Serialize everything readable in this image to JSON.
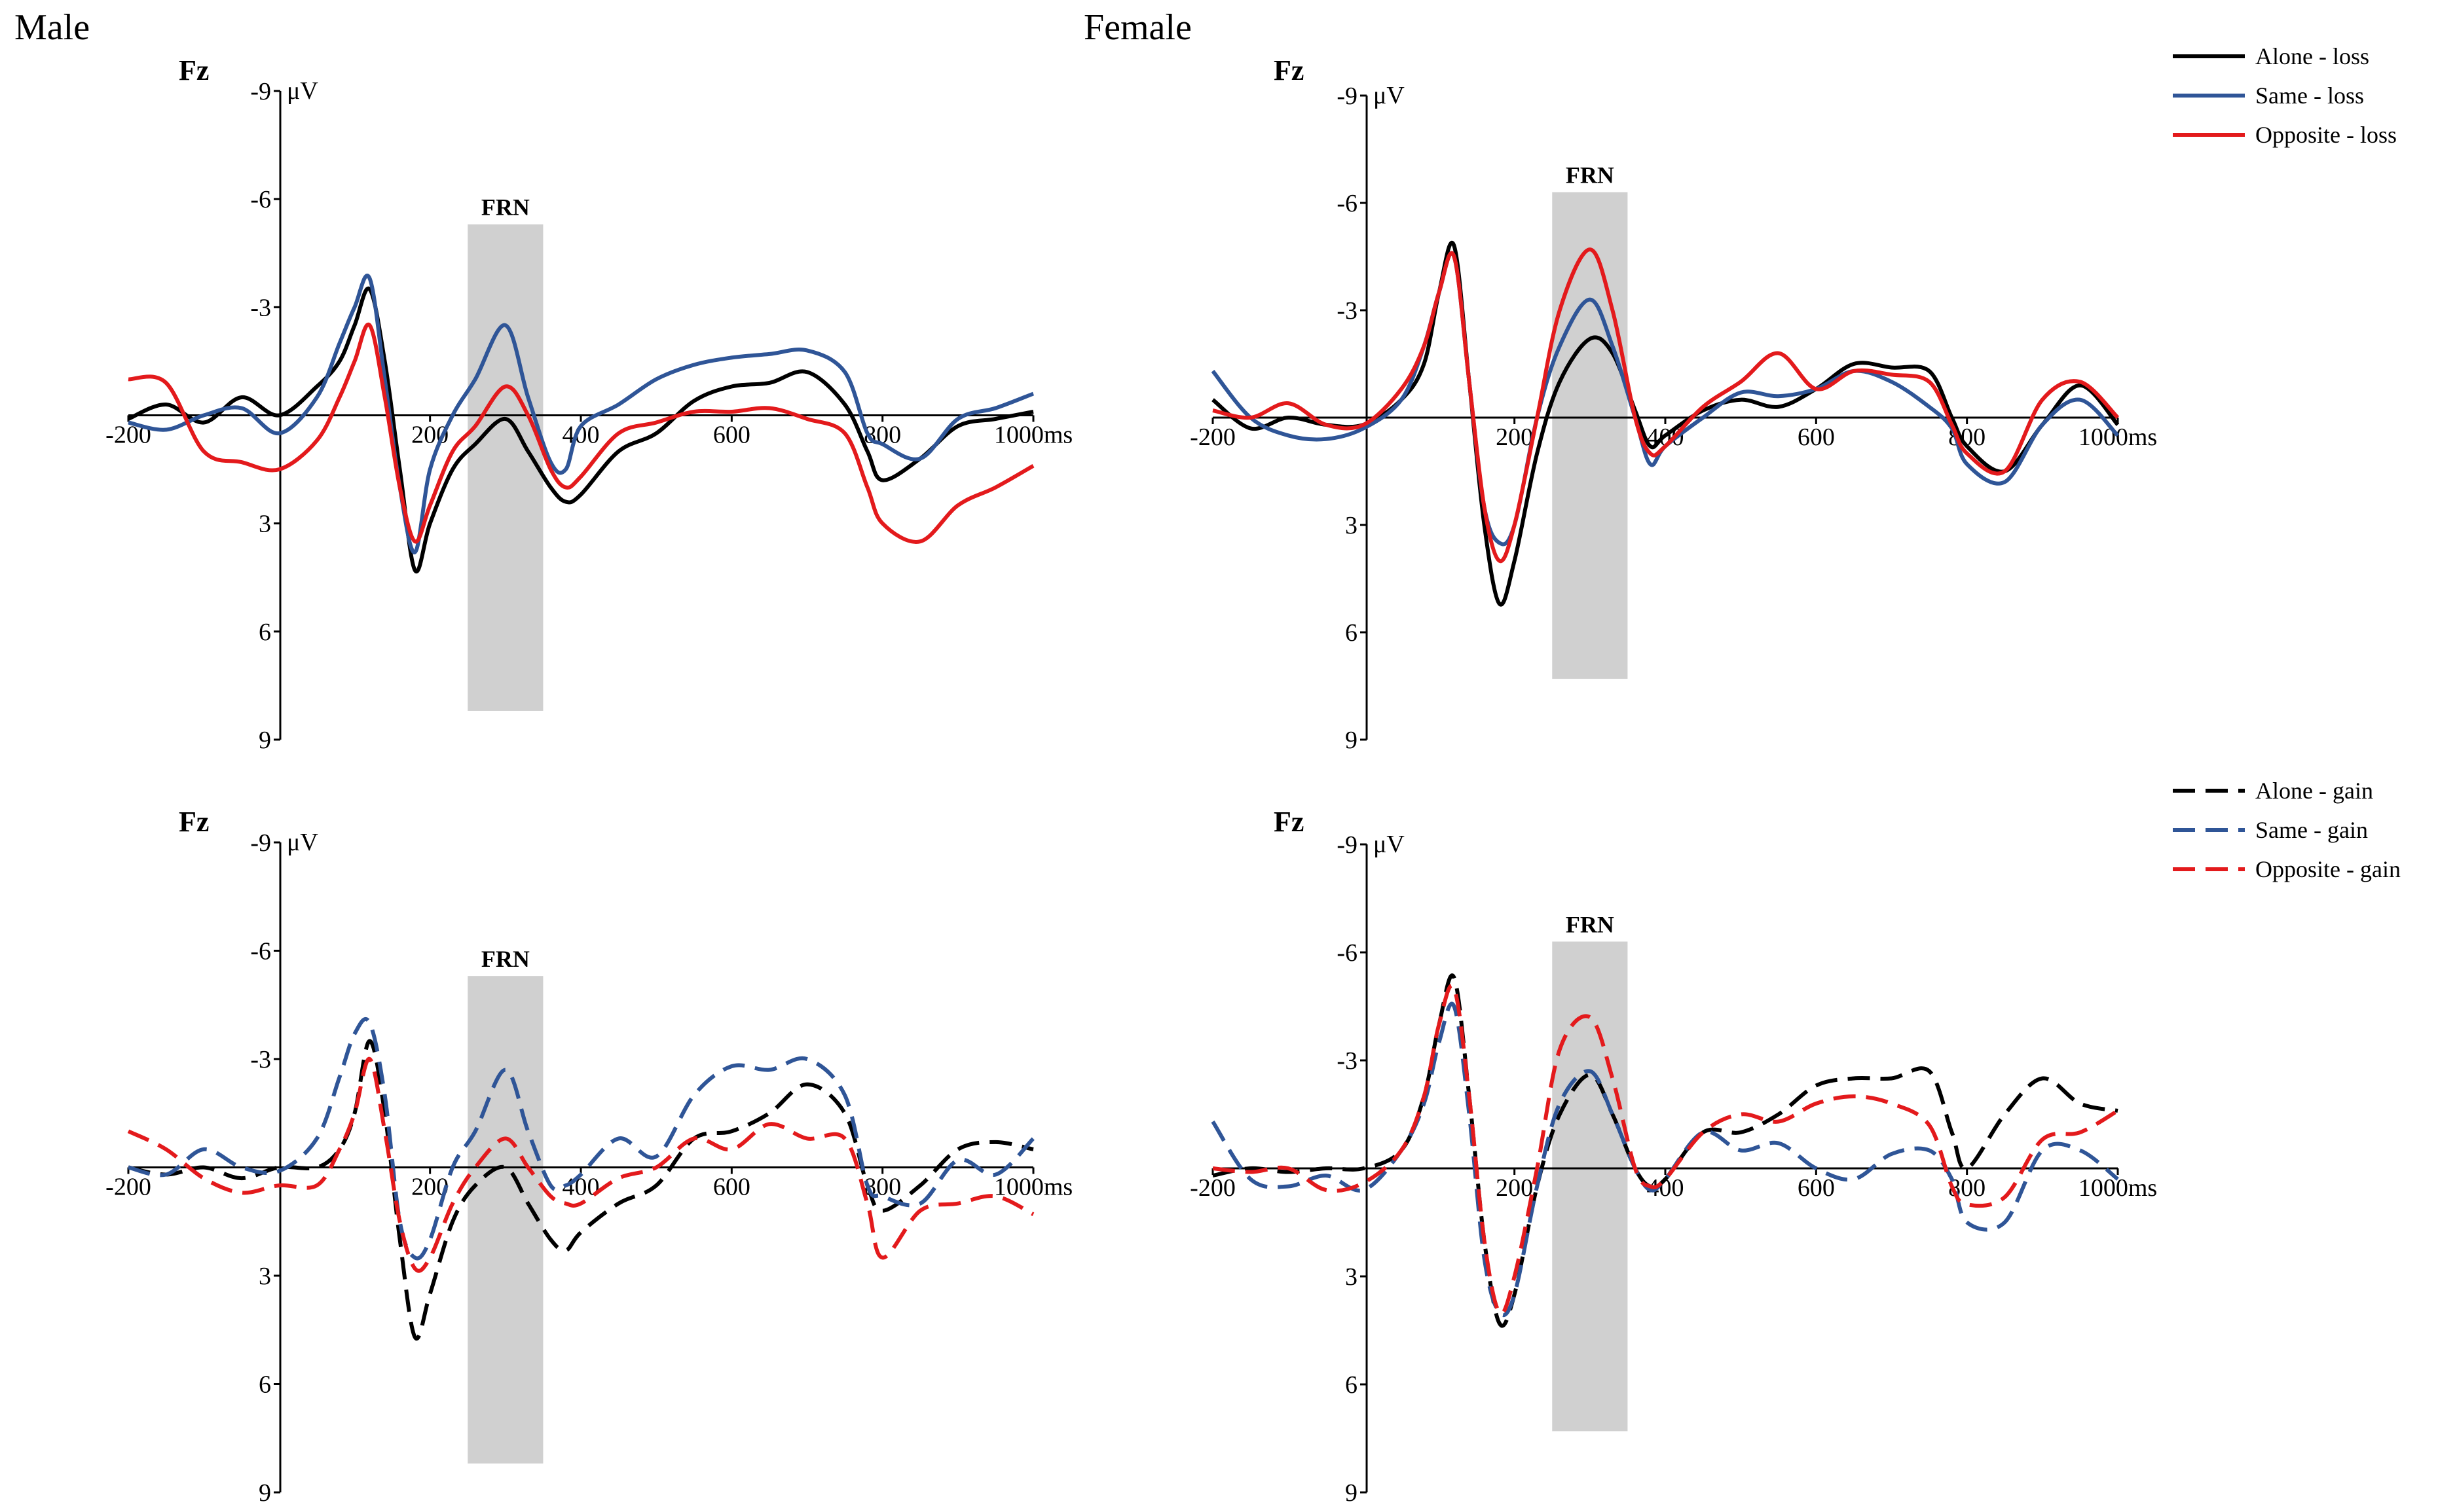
{
  "headings": {
    "left": "Male",
    "right": "Female"
  },
  "legends": [
    {
      "items": [
        {
          "label": "Alone - loss",
          "color": "#000000",
          "dashed": false
        },
        {
          "label": "Same - loss",
          "color": "#2f5597",
          "dashed": false
        },
        {
          "label": "Opposite - loss",
          "color": "#e31a1c",
          "dashed": false
        }
      ]
    },
    {
      "items": [
        {
          "label": "Alone - gain",
          "color": "#000000",
          "dashed": true
        },
        {
          "label": "Same - gain",
          "color": "#2f5597",
          "dashed": true
        },
        {
          "label": "Opposite - gain",
          "color": "#e31a1c",
          "dashed": true
        }
      ]
    }
  ],
  "chart_data": [
    {
      "type": "line",
      "panel": "Male, loss",
      "electrode": "Fz",
      "ylabel": "μV",
      "xlabel": "ms",
      "x_ticks": [
        "-200",
        "200",
        "400",
        "600",
        "800",
        "1000ms"
      ],
      "y_ticks": [
        "-9",
        "-6",
        "-3",
        "3",
        "6",
        "9"
      ],
      "xlim": [
        -200,
        1000
      ],
      "ylim": [
        -9,
        9
      ],
      "y_inverted": true,
      "annotation": {
        "label": "FRN",
        "x_range": [
          250,
          350
        ],
        "y_range": [
          -5.3,
          8.2
        ]
      },
      "x": [
        -200,
        -150,
        -100,
        -50,
        0,
        50,
        80,
        100,
        120,
        140,
        160,
        180,
        200,
        230,
        260,
        300,
        330,
        360,
        380,
        400,
        450,
        500,
        550,
        600,
        650,
        700,
        750,
        780,
        800,
        850,
        900,
        950,
        1000
      ],
      "series": [
        {
          "name": "Alone - loss",
          "color": "#000000",
          "dashed": false,
          "values": [
            0.1,
            -0.3,
            0.2,
            -0.5,
            0.0,
            -0.8,
            -1.5,
            -2.5,
            -3.5,
            -1.5,
            1.5,
            4.3,
            3.0,
            1.5,
            0.8,
            0.1,
            1.0,
            2.0,
            2.4,
            2.2,
            1.0,
            0.5,
            -0.4,
            -0.8,
            -0.9,
            -1.2,
            -0.3,
            1.0,
            1.8,
            1.2,
            0.3,
            0.1,
            -0.1
          ]
        },
        {
          "name": "Same - loss",
          "color": "#2f5597",
          "dashed": false,
          "values": [
            0.2,
            0.4,
            0.0,
            -0.2,
            0.5,
            -0.5,
            -2.0,
            -3.0,
            -3.8,
            -1.0,
            2.0,
            3.8,
            1.5,
            0.0,
            -1.0,
            -2.5,
            -0.5,
            1.3,
            1.5,
            0.3,
            -0.3,
            -1.0,
            -1.4,
            -1.6,
            -1.7,
            -1.8,
            -1.2,
            0.5,
            0.8,
            1.2,
            0.1,
            -0.2,
            -0.6
          ]
        },
        {
          "name": "Opposite - loss",
          "color": "#e31a1c",
          "dashed": false,
          "values": [
            -1.0,
            -0.9,
            1.0,
            1.3,
            1.5,
            0.7,
            -0.5,
            -1.5,
            -2.5,
            -0.5,
            2.0,
            3.5,
            2.5,
            1.0,
            0.3,
            -0.8,
            0.0,
            1.5,
            2.0,
            1.7,
            0.5,
            0.2,
            -0.1,
            -0.1,
            -0.2,
            0.1,
            0.5,
            2.0,
            3.0,
            3.5,
            2.5,
            2.0,
            1.4
          ]
        }
      ]
    },
    {
      "type": "line",
      "panel": "Female, loss",
      "electrode": "Fz",
      "ylabel": "μV",
      "xlabel": "ms",
      "x_ticks": [
        "-200",
        "200",
        "400",
        "600",
        "800",
        "1000ms"
      ],
      "y_ticks": [
        "-9",
        "-6",
        "-3",
        "3",
        "6",
        "9"
      ],
      "xlim": [
        -200,
        1000
      ],
      "ylim": [
        -9,
        9
      ],
      "y_inverted": true,
      "annotation": {
        "label": "FRN",
        "x_range": [
          250,
          350
        ],
        "y_range": [
          -6.3,
          7.3
        ]
      },
      "x": [
        -200,
        -150,
        -100,
        -50,
        0,
        50,
        80,
        100,
        120,
        140,
        160,
        180,
        200,
        230,
        260,
        300,
        330,
        360,
        380,
        400,
        450,
        500,
        550,
        600,
        650,
        700,
        750,
        780,
        800,
        850,
        900,
        950,
        1000
      ],
      "series": [
        {
          "name": "Alone - loss",
          "color": "#000000",
          "dashed": false,
          "values": [
            -0.5,
            0.3,
            0.0,
            0.2,
            0.2,
            -0.5,
            -1.5,
            -3.5,
            -4.8,
            -1.0,
            3.0,
            5.2,
            4.0,
            1.0,
            -1.0,
            -2.2,
            -1.8,
            -0.2,
            0.8,
            0.5,
            -0.2,
            -0.5,
            -0.3,
            -0.8,
            -1.5,
            -1.4,
            -1.3,
            0.0,
            0.8,
            1.5,
            0.2,
            -0.9,
            0.2
          ]
        },
        {
          "name": "Same - loss",
          "color": "#2f5597",
          "dashed": false,
          "values": [
            -1.3,
            0.0,
            0.5,
            0.6,
            0.3,
            -0.5,
            -2.0,
            -3.5,
            -4.5,
            -1.0,
            2.5,
            3.5,
            3.0,
            0.0,
            -2.0,
            -3.3,
            -2.0,
            0.0,
            1.3,
            0.8,
            0.0,
            -0.7,
            -0.6,
            -0.8,
            -1.3,
            -1.0,
            -0.3,
            0.3,
            1.3,
            1.8,
            0.2,
            -0.5,
            0.5
          ]
        },
        {
          "name": "Opposite - loss",
          "color": "#e31a1c",
          "dashed": false,
          "values": [
            -0.2,
            0.0,
            -0.4,
            0.2,
            0.2,
            -0.8,
            -2.0,
            -3.5,
            -4.5,
            -1.0,
            2.5,
            4.0,
            3.0,
            0.0,
            -3.0,
            -4.7,
            -3.0,
            0.0,
            1.0,
            0.8,
            -0.3,
            -1.0,
            -1.8,
            -0.8,
            -1.3,
            -1.2,
            -1.0,
            0.2,
            1.0,
            1.5,
            -0.5,
            -1.0,
            0.0
          ]
        }
      ]
    },
    {
      "type": "line",
      "panel": "Male, gain",
      "electrode": "Fz",
      "ylabel": "μV",
      "xlabel": "ms",
      "x_ticks": [
        "-200",
        "200",
        "400",
        "600",
        "800",
        "1000ms"
      ],
      "y_ticks": [
        "-9",
        "-6",
        "-3",
        "3",
        "6",
        "9"
      ],
      "xlim": [
        -200,
        1000
      ],
      "ylim": [
        -9,
        9
      ],
      "y_inverted": true,
      "annotation": {
        "label": "FRN",
        "x_range": [
          250,
          350
        ],
        "y_range": [
          -5.3,
          8.2
        ]
      },
      "x": [
        -200,
        -150,
        -100,
        -50,
        0,
        50,
        80,
        100,
        120,
        140,
        160,
        180,
        200,
        230,
        260,
        300,
        330,
        360,
        380,
        400,
        450,
        500,
        550,
        600,
        650,
        700,
        750,
        780,
        800,
        850,
        900,
        950,
        1000
      ],
      "series": [
        {
          "name": "Alone - gain",
          "color": "#000000",
          "dashed": true,
          "values": [
            0.0,
            0.2,
            0.0,
            0.3,
            0.0,
            0.0,
            -0.5,
            -1.5,
            -3.5,
            -1.5,
            2.0,
            4.7,
            3.5,
            1.5,
            0.5,
            0.0,
            1.0,
            2.0,
            2.3,
            1.8,
            1.0,
            0.5,
            -0.8,
            -1.0,
            -1.5,
            -2.3,
            -1.5,
            0.5,
            1.2,
            0.5,
            -0.5,
            -0.7,
            -0.5
          ]
        },
        {
          "name": "Same - gain",
          "color": "#2f5597",
          "dashed": true,
          "values": [
            0.0,
            0.2,
            -0.5,
            0.0,
            0.1,
            -0.8,
            -2.5,
            -3.7,
            -4.0,
            -2.0,
            1.5,
            2.5,
            2.0,
            0.0,
            -1.0,
            -2.7,
            -1.0,
            0.5,
            0.5,
            0.2,
            -0.8,
            -0.3,
            -2.0,
            -2.8,
            -2.7,
            -3.0,
            -2.0,
            0.5,
            0.8,
            1.0,
            -0.2,
            0.2,
            -0.8
          ]
        },
        {
          "name": "Opposite - gain",
          "color": "#e31a1c",
          "dashed": true,
          "values": [
            -1.0,
            -0.5,
            0.3,
            0.7,
            0.5,
            0.5,
            -0.5,
            -1.5,
            -3.0,
            -1.0,
            1.5,
            2.8,
            2.5,
            1.0,
            0.0,
            -0.8,
            0.0,
            0.8,
            1.0,
            1.0,
            0.3,
            0.0,
            -0.8,
            -0.5,
            -1.2,
            -0.8,
            -0.8,
            1.0,
            2.5,
            1.2,
            1.0,
            0.8,
            1.3
          ]
        }
      ]
    },
    {
      "type": "line",
      "panel": "Female, gain",
      "electrode": "Fz",
      "ylabel": "μV",
      "xlabel": "ms",
      "x_ticks": [
        "-200",
        "200",
        "400",
        "600",
        "800",
        "1000ms"
      ],
      "y_ticks": [
        "-9",
        "-6",
        "-3",
        "3",
        "6",
        "9"
      ],
      "xlim": [
        -200,
        1000
      ],
      "ylim": [
        -9,
        9
      ],
      "y_inverted": true,
      "annotation": {
        "label": "FRN",
        "x_range": [
          250,
          350
        ],
        "y_range": [
          -6.3,
          7.3
        ]
      },
      "x": [
        -200,
        -150,
        -100,
        -50,
        0,
        50,
        80,
        100,
        120,
        140,
        160,
        180,
        200,
        230,
        260,
        300,
        330,
        360,
        380,
        400,
        450,
        500,
        550,
        600,
        650,
        700,
        750,
        780,
        800,
        850,
        900,
        950,
        1000
      ],
      "series": [
        {
          "name": "Alone - gain",
          "color": "#000000",
          "dashed": true,
          "values": [
            0.2,
            0.0,
            0.1,
            0.0,
            0.0,
            -0.5,
            -2.0,
            -4.0,
            -5.3,
            -2.0,
            2.0,
            4.3,
            3.5,
            0.5,
            -1.5,
            -2.6,
            -1.5,
            0.0,
            0.5,
            0.3,
            -1.0,
            -1.0,
            -1.5,
            -2.3,
            -2.5,
            -2.5,
            -2.7,
            -1.0,
            0.0,
            -1.5,
            -2.5,
            -1.8,
            -1.6
          ]
        },
        {
          "name": "Same - gain",
          "color": "#2f5597",
          "dashed": true,
          "values": [
            -1.3,
            0.3,
            0.5,
            0.2,
            0.6,
            -0.5,
            -1.8,
            -3.5,
            -4.5,
            -1.5,
            2.5,
            4.0,
            3.5,
            0.5,
            -1.8,
            -2.7,
            -1.5,
            0.0,
            0.6,
            0.3,
            -1.0,
            -0.5,
            -0.7,
            0.0,
            0.3,
            -0.4,
            -0.5,
            0.3,
            1.5,
            1.5,
            -0.5,
            -0.5,
            0.3
          ]
        },
        {
          "name": "Opposite - gain",
          "color": "#e31a1c",
          "dashed": true,
          "values": [
            0.0,
            0.1,
            0.0,
            0.6,
            0.4,
            -0.5,
            -2.0,
            -4.0,
            -5.0,
            -2.0,
            2.0,
            4.0,
            3.0,
            0.0,
            -3.3,
            -4.2,
            -2.5,
            0.0,
            0.5,
            0.3,
            -1.0,
            -1.5,
            -1.3,
            -1.8,
            -2.0,
            -1.8,
            -1.2,
            0.5,
            1.0,
            0.8,
            -0.8,
            -1.0,
            -1.6
          ]
        }
      ]
    }
  ]
}
